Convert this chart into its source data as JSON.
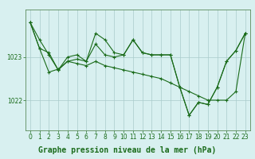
{
  "background_color": "#d8f0f0",
  "grid_color": "#aacccc",
  "line_color": "#1a6b1a",
  "marker_color": "#1a6b1a",
  "title": "Graphe pression niveau de la mer (hPa)",
  "yticks": [
    1022,
    1023
  ],
  "ylim": [
    1021.3,
    1024.1
  ],
  "xlim": [
    -0.5,
    23.5
  ],
  "xticks": [
    0,
    1,
    2,
    3,
    4,
    5,
    6,
    7,
    8,
    9,
    10,
    11,
    12,
    13,
    14,
    15,
    16,
    17,
    18,
    19,
    20,
    21,
    22,
    23
  ],
  "series": [
    [
      1023.8,
      1023.2,
      1023.1,
      1022.7,
      1023.0,
      1023.05,
      1022.9,
      1023.55,
      1023.4,
      1023.1,
      1023.05,
      1023.4,
      1023.1,
      1023.05,
      1023.05,
      1023.05,
      1022.3,
      1021.65,
      1021.95,
      1021.9,
      1022.3,
      1022.9,
      1023.15,
      1023.55
    ],
    [
      1023.8,
      1023.4,
      1023.05,
      1022.7,
      1022.9,
      1022.85,
      1022.8,
      1022.9,
      1022.8,
      1022.75,
      1022.7,
      1022.65,
      1022.6,
      1022.55,
      1022.5,
      1022.4,
      1022.3,
      1022.2,
      1022.1,
      1022.0,
      1022.0,
      1022.0,
      1022.2,
      1023.55
    ],
    [
      1023.8,
      1023.2,
      1022.65,
      1022.72,
      1022.9,
      1022.95,
      1022.9,
      1023.3,
      1023.05,
      1023.0,
      1023.05,
      1023.4,
      1023.1,
      1023.05,
      1023.05,
      1023.05,
      1022.3,
      1021.65,
      1021.95,
      1021.9,
      1022.3,
      1022.9,
      1023.15,
      1023.55
    ]
  ],
  "title_fontsize": 7,
  "tick_fontsize": 5.5,
  "tick_color": "#1a6b1a",
  "spine_color": "#5a8a5a"
}
